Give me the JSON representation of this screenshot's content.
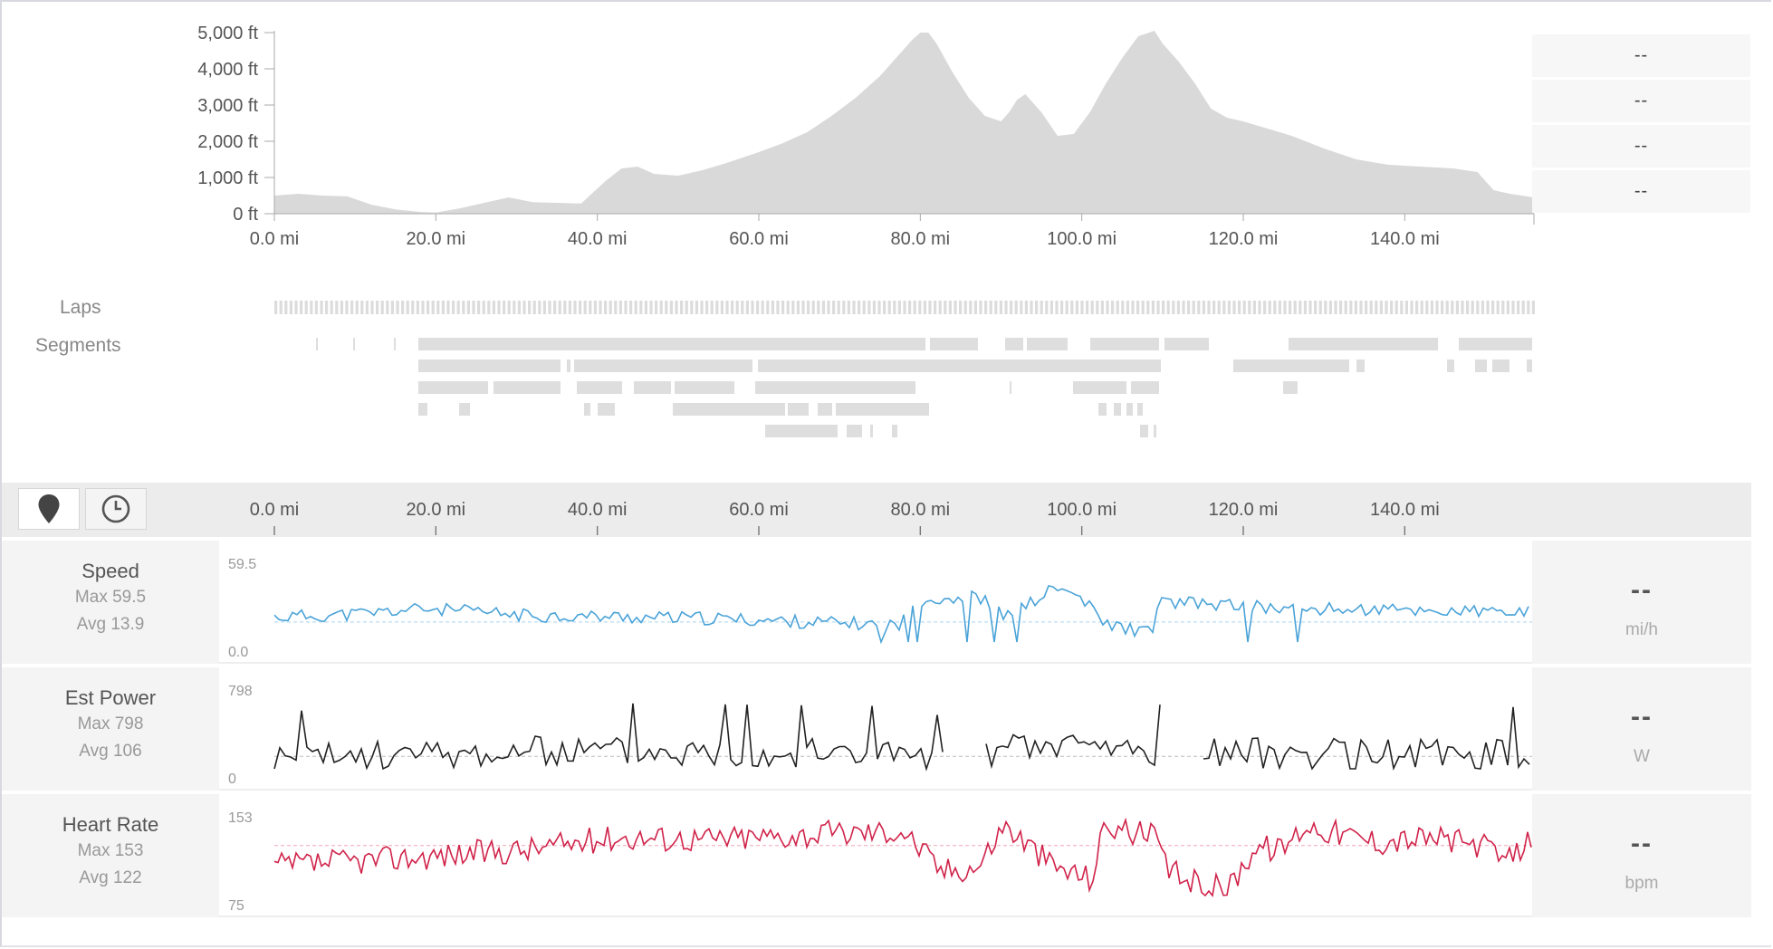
{
  "elevation": {
    "y_ticks": [
      "5,000 ft",
      "4,000 ft",
      "3,000 ft",
      "2,000 ft",
      "1,000 ft",
      "0 ft"
    ],
    "x_ticks": [
      "0.0 mi",
      "20.0 mi",
      "40.0 mi",
      "60.0 mi",
      "80.0 mi",
      "100.0 mi",
      "120.0 mi",
      "140.0 mi"
    ],
    "fill_color": "#d9d9d9"
  },
  "stat_boxes": [
    "--",
    "--",
    "--",
    "--"
  ],
  "row_labels": {
    "laps": "Laps",
    "segments": "Segments"
  },
  "toolbar": {
    "distance_icon": "map-pin-icon",
    "time_icon": "clock-icon",
    "x_ticks": [
      "0.0 mi",
      "20.0 mi",
      "40.0 mi",
      "60.0 mi",
      "80.0 mi",
      "100.0 mi",
      "120.0 mi",
      "140.0 mi"
    ]
  },
  "streams": [
    {
      "name": "Speed",
      "max": "Max 59.5",
      "avg": "Avg 13.9",
      "y_top": "59.5",
      "y_bottom": "0.0",
      "value": "--",
      "unit": "mi/h",
      "color": "#4aa3d8"
    },
    {
      "name": "Est Power",
      "max": "Max 798",
      "avg": "Avg 106",
      "y_top": "798",
      "y_bottom": "0",
      "value": "--",
      "unit": "W",
      "color": "#222222"
    },
    {
      "name": "Heart Rate",
      "max": "Max 153",
      "avg": "Avg 122",
      "y_top": "153",
      "y_bottom": "75",
      "value": "--",
      "unit": "bpm",
      "color": "#d0234a"
    }
  ],
  "chart_data": {
    "type": "area",
    "xlabel": "",
    "ylabel": "",
    "xlim": [
      0,
      156
    ],
    "ylim": [
      0,
      5000
    ],
    "x": [
      0,
      3,
      6,
      9,
      12,
      15,
      18,
      20,
      23,
      26,
      29,
      32,
      35,
      38,
      41,
      43,
      45,
      47,
      50,
      53,
      56,
      60,
      63,
      66,
      69,
      72,
      75,
      77,
      79,
      80,
      81,
      82,
      84,
      86,
      88,
      90,
      91,
      92,
      93,
      95,
      97,
      99,
      101,
      103,
      105,
      107,
      109,
      110,
      112,
      114,
      116,
      118,
      120,
      123,
      126,
      130,
      134,
      138,
      142,
      146,
      149,
      150,
      151,
      153,
      156
    ],
    "y": [
      500,
      550,
      500,
      480,
      250,
      120,
      50,
      30,
      150,
      300,
      450,
      320,
      300,
      280,
      900,
      1250,
      1300,
      1100,
      1050,
      1200,
      1400,
      1700,
      1950,
      2250,
      2700,
      3200,
      3800,
      4300,
      4800,
      5000,
      5000,
      4700,
      3900,
      3200,
      2700,
      2550,
      2800,
      3150,
      3300,
      2800,
      2150,
      2200,
      2800,
      3600,
      4300,
      4900,
      5300,
      4700,
      4200,
      3600,
      2900,
      2650,
      2550,
      2350,
      2150,
      1800,
      1500,
      1350,
      1300,
      1250,
      1150,
      900,
      650,
      550,
      450
    ]
  }
}
